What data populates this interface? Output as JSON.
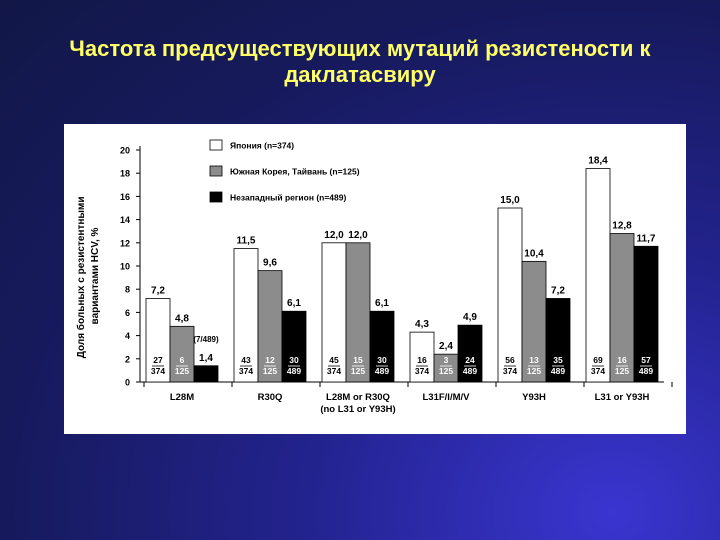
{
  "slide": {
    "title_line1": "Частота предсуществующих мутаций резистености к",
    "title_line2": "даклатасвиру"
  },
  "colors": {
    "japan": "#ffffff",
    "korea_taiwan": "#8c8c8c",
    "western": "#000000",
    "title": "#ffff66"
  },
  "chart_data": {
    "type": "bar",
    "ylabel_line1": "Доля больных с резистентными",
    "ylabel_line2": "вариантами HCV, %",
    "ylim": [
      0,
      20
    ],
    "yticks": [
      "0",
      "2",
      "4",
      "6",
      "8",
      "10",
      "12",
      "14",
      "16",
      "18",
      "20"
    ],
    "categories": [
      "L28M",
      "R30Q",
      "L28M or R30Q (no L31 or Y93H)",
      "L31F/I/M/V",
      "Y93H",
      "L31 or Y93H"
    ],
    "category_labels": [
      [
        "L28M"
      ],
      [
        "R30Q"
      ],
      [
        "L28M or R30Q",
        "(no L31 or Y93H)"
      ],
      [
        "L31F/I/M/V"
      ],
      [
        "Y93H"
      ],
      [
        "L31 or Y93H"
      ]
    ],
    "series": [
      {
        "name": "Япония (n=374)",
        "values": [
          7.2,
          11.5,
          12.0,
          4.3,
          15.0,
          18.4
        ],
        "value_labels": [
          "7,2",
          "11,5",
          "12,0",
          "4,3",
          "15,0",
          "18,4"
        ],
        "counts": [
          [
            "27",
            "374"
          ],
          [
            "43",
            "374"
          ],
          [
            "45",
            "374"
          ],
          [
            "16",
            "374"
          ],
          [
            "56",
            "374"
          ],
          [
            "69",
            "374"
          ]
        ]
      },
      {
        "name": "Южная Корея, Тайвань (n=125)",
        "values": [
          4.8,
          9.6,
          12.0,
          2.4,
          10.4,
          12.8
        ],
        "value_labels": [
          "4,8",
          "9,6",
          "12,0",
          "2,4",
          "10,4",
          "12,8"
        ],
        "counts": [
          [
            "6",
            "125"
          ],
          [
            "12",
            "125"
          ],
          [
            "15",
            "125"
          ],
          [
            "3",
            "125"
          ],
          [
            "13",
            "125"
          ],
          [
            "16",
            "125"
          ]
        ]
      },
      {
        "name": "Незападный регион (n=489)",
        "values": [
          1.4,
          6.1,
          6.1,
          4.9,
          7.2,
          11.7
        ],
        "value_labels": [
          "1,4",
          "6,1",
          "6,1",
          "4,9",
          "7,2",
          "11,7"
        ],
        "counts": [
          [
            "",
            ""
          ],
          [
            "30",
            "489"
          ],
          [
            "30",
            "489"
          ],
          [
            "24",
            "489"
          ],
          [
            "35",
            "489"
          ],
          [
            "57",
            "489"
          ]
        ]
      }
    ],
    "annotations": [
      "(7/489)"
    ],
    "legend_position": "top-left"
  }
}
